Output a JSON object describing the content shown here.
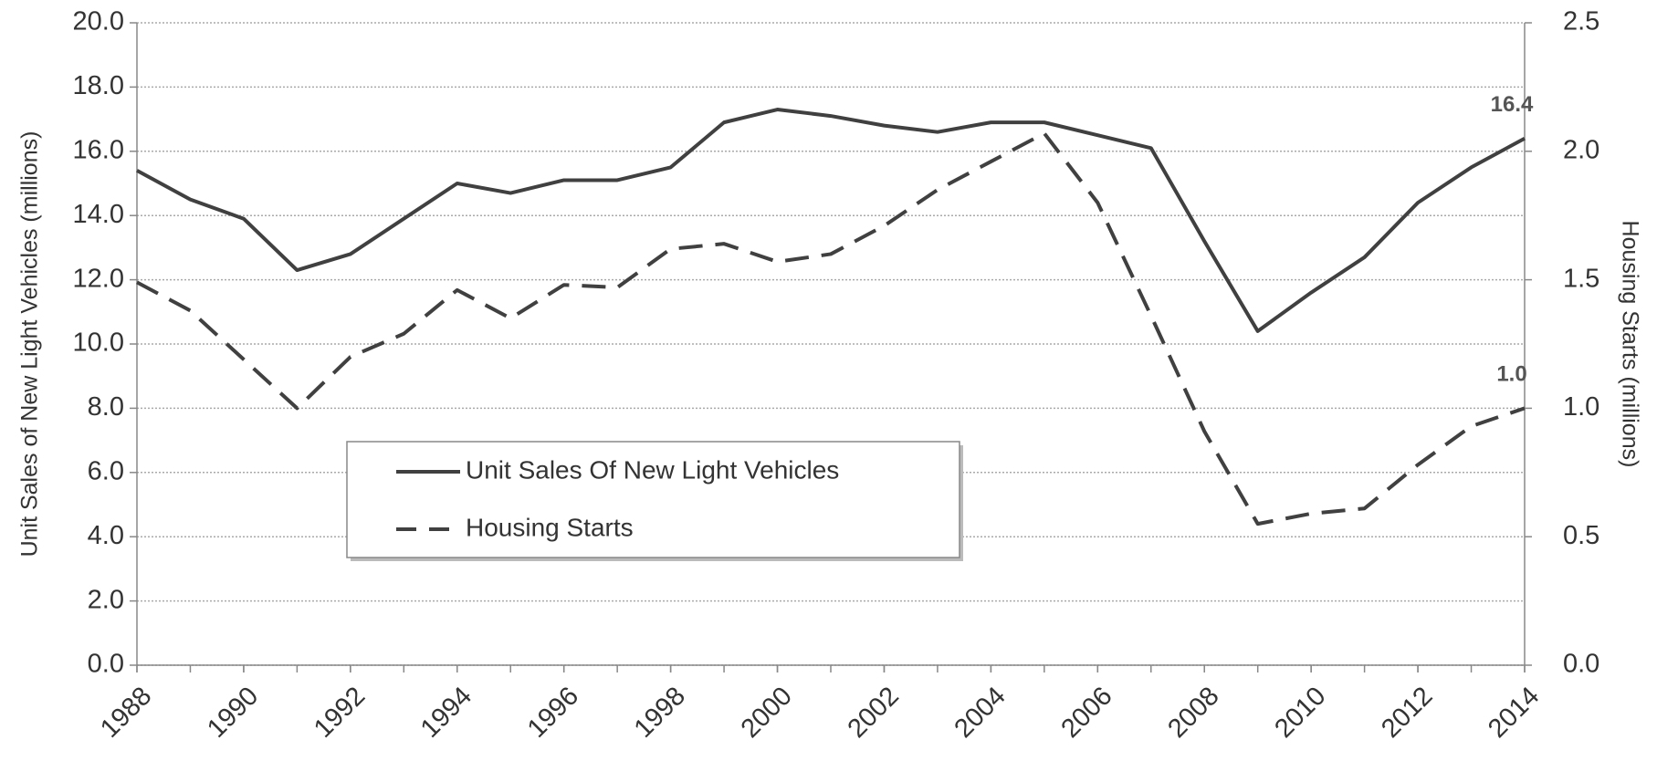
{
  "chart_data": {
    "type": "line",
    "y_label": "Unit Sales of New Light Vehicles (millions)",
    "y2_label": "Housing Starts (millions)",
    "x": [
      1988,
      1989,
      1990,
      1991,
      1992,
      1993,
      1994,
      1995,
      1996,
      1997,
      1998,
      1999,
      2000,
      2001,
      2002,
      2003,
      2004,
      2005,
      2006,
      2007,
      2008,
      2009,
      2010,
      2011,
      2012,
      2013,
      2014
    ],
    "xlim": [
      1988,
      2014
    ],
    "xticks": [
      1988,
      1990,
      1992,
      1994,
      1996,
      1998,
      2000,
      2002,
      2004,
      2006,
      2008,
      2010,
      2012,
      2014
    ],
    "ylim": [
      0,
      20
    ],
    "yticks": [
      {
        "value": 0,
        "label": "0.0"
      },
      {
        "value": 2,
        "label": "2.0"
      },
      {
        "value": 4,
        "label": "4.0"
      },
      {
        "value": 6,
        "label": "6.0"
      },
      {
        "value": 8,
        "label": "8.0"
      },
      {
        "value": 10,
        "label": "10.0"
      },
      {
        "value": 12,
        "label": "12.0"
      },
      {
        "value": 14,
        "label": "14.0"
      },
      {
        "value": 16,
        "label": "16.0"
      },
      {
        "value": 18,
        "label": "18.0"
      },
      {
        "value": 20,
        "label": "20.0"
      }
    ],
    "y2lim": [
      0,
      2.5
    ],
    "y2ticks": [
      {
        "value": 0,
        "label": "0.0"
      },
      {
        "value": 0.5,
        "label": "0.5"
      },
      {
        "value": 1,
        "label": "1.0"
      },
      {
        "value": 1.5,
        "label": "1.5"
      },
      {
        "value": 2,
        "label": "2.0"
      },
      2.5
    ],
    "grid": true,
    "series": [
      {
        "name": "Unit Sales Of New Light Vehicles",
        "color": "#404040",
        "dash": "solid",
        "values": [
          15.4,
          14.5,
          13.9,
          12.3,
          12.8,
          13.9,
          15.0,
          14.7,
          15.1,
          15.1,
          15.5,
          16.9,
          17.3,
          17.1,
          16.8,
          16.6,
          16.9,
          16.9,
          16.5,
          16.1,
          13.2,
          10.4,
          11.6,
          12.7,
          14.4,
          15.5,
          16.4
        ],
        "value_labels": [
          null,
          null,
          null,
          null,
          null,
          null,
          null,
          null,
          null,
          null,
          null,
          null,
          null,
          null,
          null,
          null,
          null,
          null,
          null,
          null,
          null,
          null,
          null,
          null,
          null,
          null,
          "16.4"
        ]
      },
      {
        "name": "Housing Starts",
        "color": "#404040",
        "dash": "dashed",
        "axis": "y2",
        "values": [
          1.49,
          1.38,
          1.19,
          1.0,
          1.2,
          1.29,
          1.46,
          1.35,
          1.48,
          1.47,
          1.62,
          1.64,
          1.57,
          1.6,
          1.71,
          1.85,
          1.96,
          2.07,
          1.8,
          1.36,
          0.91,
          0.55,
          0.59,
          0.61,
          0.78,
          0.93,
          1.0
        ],
        "value_labels": [
          null,
          null,
          null,
          null,
          null,
          null,
          null,
          null,
          null,
          null,
          null,
          null,
          null,
          null,
          null,
          null,
          null,
          null,
          null,
          null,
          null,
          null,
          null,
          null,
          null,
          null,
          "1.0"
        ]
      }
    ]
  }
}
